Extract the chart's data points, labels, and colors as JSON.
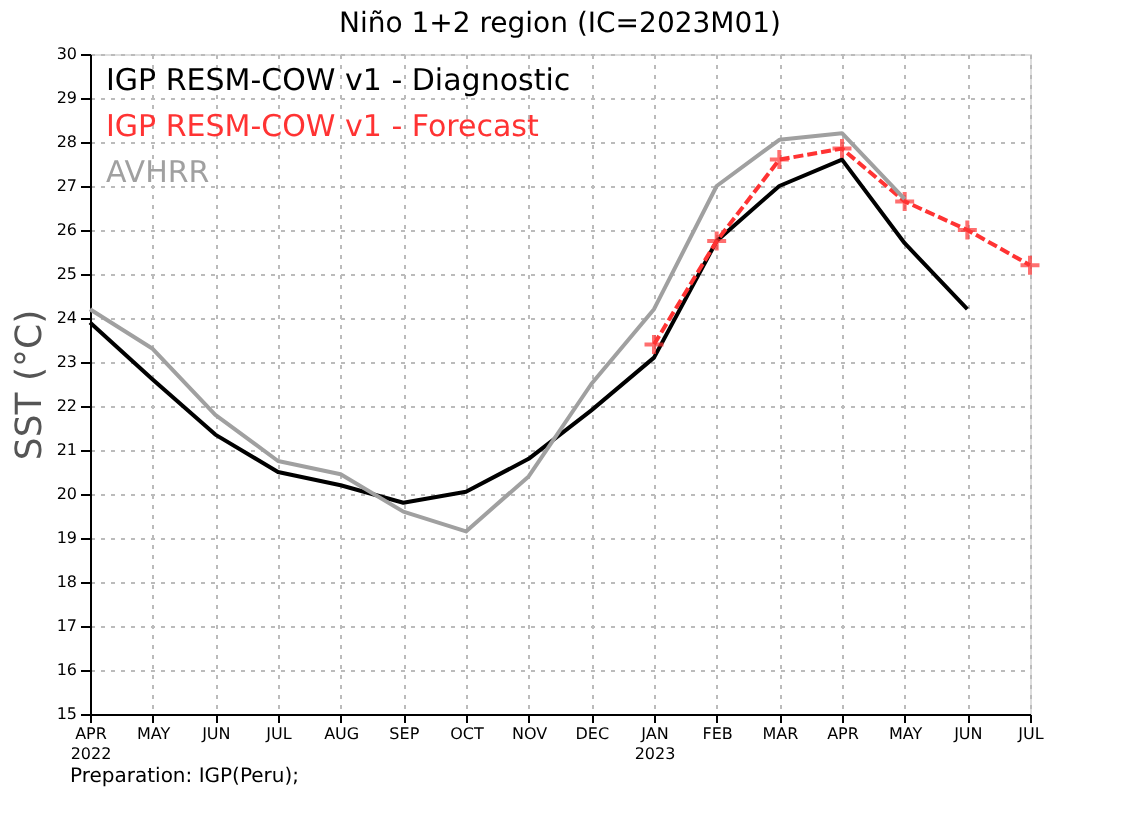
{
  "chart_data": {
    "type": "line",
    "title": "Niño 1+2 region (IC=2023M01)",
    "ylabel": "SST (°C)",
    "categories": [
      "APR 2022",
      "MAY",
      "JUN",
      "JUL",
      "AUG",
      "SEP",
      "OCT",
      "NOV",
      "DEC",
      "JAN 2023",
      "FEB",
      "MAR",
      "APR",
      "MAY",
      "JUN",
      "JUL"
    ],
    "series": [
      {
        "name": "IGP RESM-COW v1 - Diagnostic",
        "color": "#000000",
        "values": [
          23.9,
          22.6,
          21.35,
          20.5,
          20.2,
          19.8,
          20.05,
          20.8,
          21.9,
          23.1,
          25.75,
          27.0,
          27.6,
          25.7,
          24.2,
          null
        ]
      },
      {
        "name": "IGP RESM-COW v1 - Forecast",
        "color": "#ff3333",
        "marker": "cross",
        "line_style": "dashed",
        "values": [
          null,
          null,
          null,
          null,
          null,
          null,
          null,
          null,
          null,
          23.4,
          25.75,
          27.6,
          27.85,
          26.65,
          26.0,
          25.2
        ]
      },
      {
        "name": "AVHRR",
        "color": "#a0a0a0",
        "values": [
          24.2,
          23.3,
          21.8,
          20.75,
          20.45,
          19.6,
          19.15,
          20.4,
          22.5,
          24.2,
          27.0,
          28.05,
          28.2,
          26.7,
          null,
          null
        ]
      }
    ],
    "ylim": [
      15,
      30
    ],
    "yticks": [
      15,
      16,
      17,
      18,
      19,
      20,
      21,
      22,
      23,
      24,
      25,
      26,
      27,
      28,
      29,
      30
    ],
    "grid": true,
    "legend": "top left",
    "annotations": [
      "Preparation: IGP(Peru);"
    ]
  }
}
